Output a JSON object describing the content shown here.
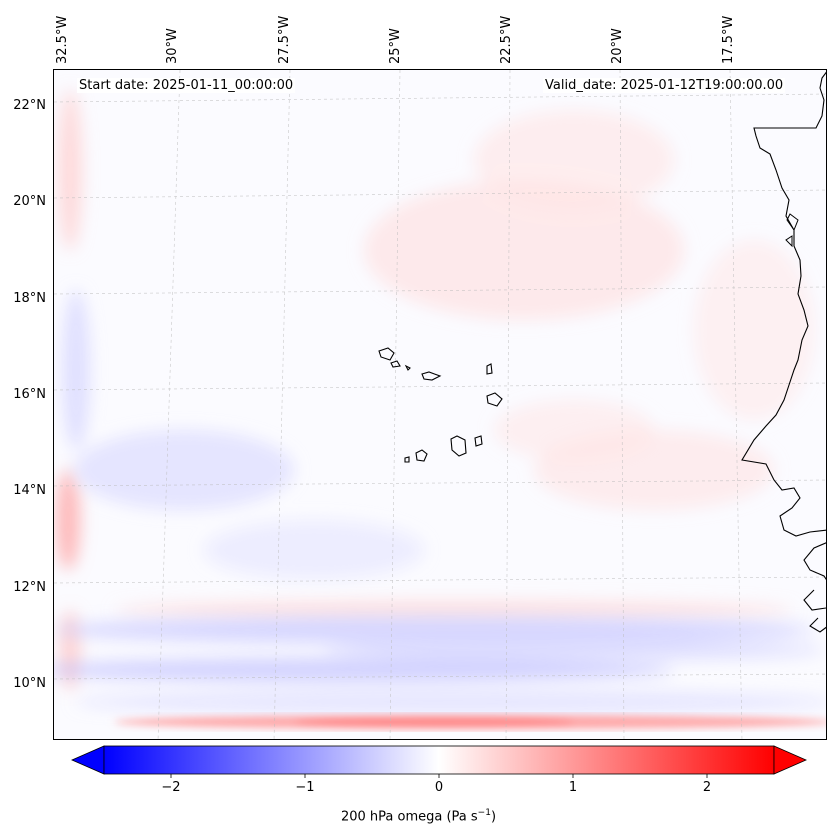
{
  "header": {
    "start_date": "Start date: 2025-01-11_00:00:00",
    "valid_date": "Valid_date: 2025-01-12T19:00:00.00"
  },
  "axes": {
    "longitude_labels": [
      "32.5°W",
      "30°W",
      "27.5°W",
      "25°W",
      "22.5°W",
      "20°W",
      "17.5°W"
    ],
    "latitude_labels": [
      "22°N",
      "20°N",
      "18°N",
      "16°N",
      "14°N",
      "12°N",
      "10°N"
    ]
  },
  "colorbar": {
    "label": "200 hPa omega (Pa s",
    "label_sup": "−1",
    "label_end": ")",
    "ticks": [
      "−2",
      "−1",
      "0",
      "1",
      "2"
    ],
    "range": [
      -2.5,
      2.5
    ],
    "negative_color": "#0000ff",
    "zero_color": "#ffffff",
    "positive_color": "#ff0000"
  }
}
